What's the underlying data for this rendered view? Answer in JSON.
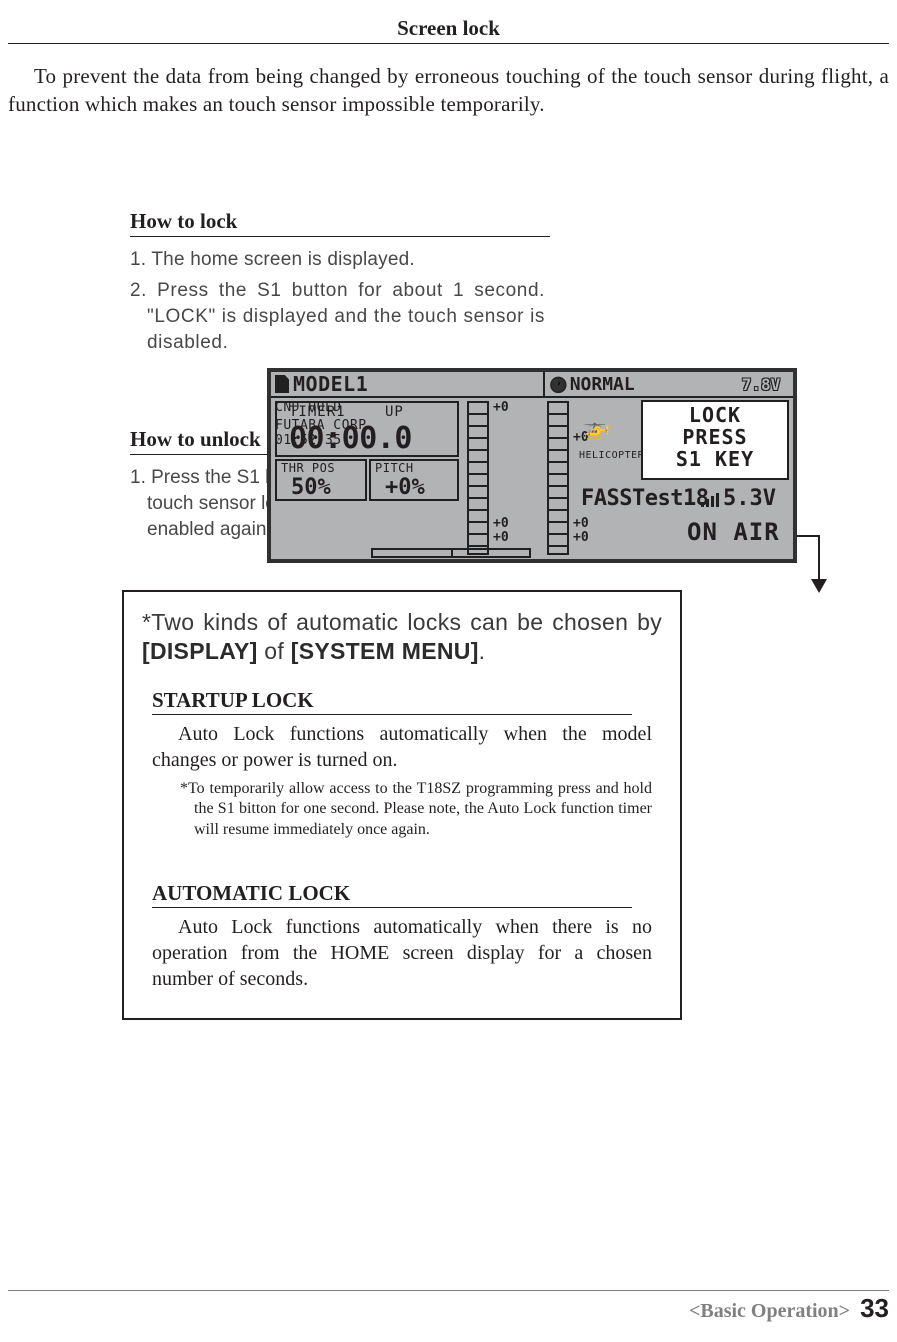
{
  "page_title": "Screen lock",
  "intro": "To prevent the data from being changed by erroneous touching of the touch sensor during flight, a function which makes an touch sensor impossible temporarily.",
  "how_to_lock": {
    "heading": "How to lock",
    "step1": "1. The home screen is displayed.",
    "step2": "2. Press the S1 button for about 1 second. \"LOCK\" is displayed and the touch sensor is disabled."
  },
  "how_to_unlock": {
    "heading": "How to unlock",
    "step1": "1. Press the S1 button for about 1 second in the touch sensor locked state. The touch sensor is enabled again."
  },
  "lcd": {
    "model": "MODEL1",
    "mode": "NORMAL",
    "tx_volt": "7.8V",
    "timer_label": "TIMER1",
    "timer_dir": "UP",
    "timer_val": "00:00.0",
    "thr_label": "THR POS",
    "thr_val": "50%",
    "pitch_label": "PITCH",
    "pitch_val": "+0%",
    "cnd": "CND HOLD",
    "corp": "FUTABA CORP.",
    "clock": "01:52:35",
    "trim_a": "+0",
    "trim_b": "+0",
    "trim_c": "+0",
    "trim_d": "+0",
    "trim_e": "+0",
    "trim_f": "+0",
    "heli": "HELICOPTER",
    "proto": "FASSTest18",
    "rx_volt": "5.3V",
    "onair": "ON AIR",
    "lock_l1": "LOCK",
    "lock_l2": "PRESS",
    "lock_l3": "S1 KEY"
  },
  "info": {
    "intro_plain1": "*Two kinds of automatic locks can be chosen by ",
    "intro_bold1": "[DISPLAY]",
    "intro_plain2": " of ",
    "intro_bold2": "[SYSTEM MENU]",
    "intro_plain3": ".",
    "startup_heading": "STARTUP LOCK",
    "startup_body": "Auto Lock functions automatically when the model changes or power is turned on.",
    "startup_note": "*To temporarily allow access to the T18SZ programming press and hold the S1 bitton for one second.  Please note, the Auto Lock function timer will resume immediately once again.",
    "auto_heading": "AUTOMATIC LOCK",
    "auto_body": "Auto Lock functions automatically when there is no operation from the HOME screen display for a chosen number of seconds."
  },
  "footer": {
    "crumb": "<Basic Operation>",
    "page": "33"
  },
  "colors": {
    "text": "#231f20",
    "body_grey": "#48484a",
    "lcd_bg": "#b2b3b4",
    "lcd_fg": "#202020",
    "footer_grey": "#808083"
  }
}
